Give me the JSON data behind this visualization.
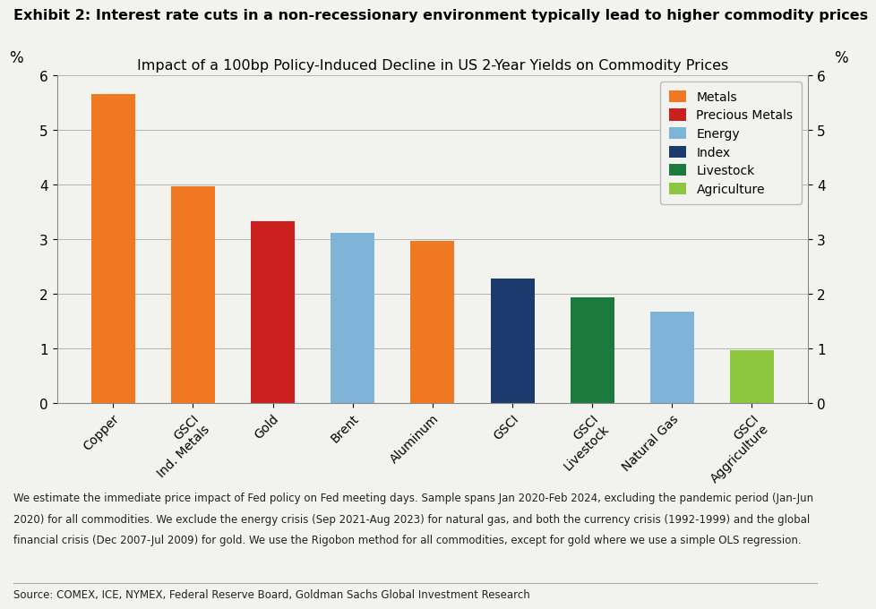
{
  "title_exhibit": "Exhibit 2: Interest rate cuts in a non-recessionary environment typically lead to higher commodity prices",
  "subtitle": "Impact of a 100bp Policy-Induced Decline in US 2-Year Yields on Commodity Prices",
  "ylabel_left": "%",
  "ylabel_right": "%",
  "ylim": [
    0,
    6
  ],
  "yticks": [
    0,
    1,
    2,
    3,
    4,
    5,
    6
  ],
  "categories": [
    "Copper",
    "GSCI\nInd. Metals",
    "Gold",
    "Brent",
    "Aluminum",
    "GSCI",
    "GSCI\nLivestock",
    "Natural Gas",
    "GSCI\nAggriculture"
  ],
  "values": [
    5.65,
    3.97,
    3.33,
    3.12,
    2.97,
    2.28,
    1.93,
    1.68,
    0.97
  ],
  "bar_colors": [
    "#F07820",
    "#F07820",
    "#CC1F1F",
    "#7EB4D8",
    "#F07820",
    "#1B3B6F",
    "#1B7B3E",
    "#7EB4D8",
    "#8DC63F"
  ],
  "legend_items": [
    {
      "label": "Metals",
      "color": "#F07820"
    },
    {
      "label": "Precious Metals",
      "color": "#CC1F1F"
    },
    {
      "label": "Energy",
      "color": "#7EB4D8"
    },
    {
      "label": "Index",
      "color": "#1B3B6F"
    },
    {
      "label": "Livestock",
      "color": "#1B7B3E"
    },
    {
      "label": "Agriculture",
      "color": "#8DC63F"
    }
  ],
  "footnote_line1": "We estimate the immediate price impact of Fed policy on Fed meeting days. Sample spans Jan 2020-Feb 2024, excluding the pandemic period (Jan-Jun",
  "footnote_line2": "2020) for all commodities. We exclude the energy crisis (Sep 2021-Aug 2023) for natural gas, and both the currency crisis (1992-1999) and the global",
  "footnote_line3": "financial crisis (Dec 2007-Jul 2009) for gold. We use the Rigobon method for all commodities, except for gold where we use a simple OLS regression.",
  "source": "Source: COMEX, ICE, NYMEX, Federal Reserve Board, Goldman Sachs Global Investment Research",
  "background_color": "#F2F2EE",
  "bar_width": 0.55
}
